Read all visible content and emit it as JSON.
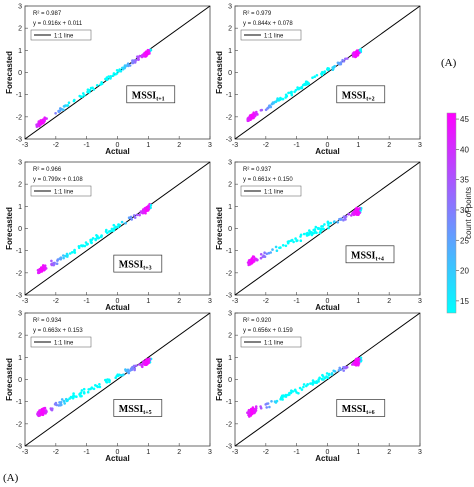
{
  "chart_data": [
    {
      "type": "scatter",
      "panel": 1,
      "xlabel": "Actual",
      "ylabel": "Forecasted",
      "xlim": [
        -3,
        3
      ],
      "ylim": [
        -3,
        3
      ],
      "ticks": [
        -3,
        -2,
        -1,
        0,
        1,
        2,
        3
      ],
      "r2": "R² = 0.987",
      "equation": "y = 0.916x + 0.011",
      "legend": "1:1 line",
      "label_main": "MSSI",
      "label_sub": "t+1",
      "slope": 0.916,
      "intercept": 0.011
    },
    {
      "type": "scatter",
      "panel": 2,
      "xlabel": "Actual",
      "ylabel": "Forecasted",
      "xlim": [
        -3,
        3
      ],
      "ylim": [
        -3,
        3
      ],
      "ticks": [
        -3,
        -2,
        -1,
        0,
        1,
        2,
        3
      ],
      "r2": "R² = 0.979",
      "equation": "y = 0.844x + 0.078",
      "legend": "1:1 line",
      "label_main": "MSSI",
      "label_sub": "t+2",
      "slope": 0.844,
      "intercept": 0.078
    },
    {
      "type": "scatter",
      "panel": 3,
      "xlabel": "Actual",
      "ylabel": "Forecasted",
      "xlim": [
        -3,
        3
      ],
      "ylim": [
        -3,
        3
      ],
      "ticks": [
        -3,
        -2,
        -1,
        0,
        1,
        2,
        3
      ],
      "r2": "R² = 0.966",
      "equation": "y = 0.799x + 0.108",
      "legend": "1:1 line",
      "label_main": "MSSI",
      "label_sub": "t+3",
      "slope": 0.799,
      "intercept": 0.108
    },
    {
      "type": "scatter",
      "panel": 4,
      "xlabel": "Actual",
      "ylabel": "Forecasted",
      "xlim": [
        -3,
        3
      ],
      "ylim": [
        -3,
        3
      ],
      "ticks": [
        -3,
        -2,
        -1,
        0,
        1,
        2,
        3
      ],
      "r2": "R² = 0.937",
      "equation": "y = 0.661x + 0.150",
      "legend": "1:1 line",
      "label_main": "MSSI",
      "label_sub": "t+4",
      "slope": 0.661,
      "intercept": 0.15
    },
    {
      "type": "scatter",
      "panel": 5,
      "xlabel": "Actual",
      "ylabel": "Forecasted",
      "xlim": [
        -3,
        3
      ],
      "ylim": [
        -3,
        3
      ],
      "ticks": [
        -3,
        -2,
        -1,
        0,
        1,
        2,
        3
      ],
      "r2": "R² = 0.934",
      "equation": "y = 0.663x + 0.153",
      "legend": "1:1 line",
      "label_main": "MSSI",
      "label_sub": "t+5",
      "slope": 0.663,
      "intercept": 0.153
    },
    {
      "type": "scatter",
      "panel": 6,
      "xlabel": "Actual",
      "ylabel": "Forecasted",
      "xlim": [
        -3,
        3
      ],
      "ylim": [
        -3,
        3
      ],
      "ticks": [
        -3,
        -2,
        -1,
        0,
        1,
        2,
        3
      ],
      "r2": "R² = 0.920",
      "equation": "y = 0.656x + 0.159",
      "legend": "1:1 line",
      "label_main": "MSSI",
      "label_sub": "t+6",
      "slope": 0.656,
      "intercept": 0.159
    }
  ],
  "colorbar": {
    "label": "count of points",
    "ticks": [
      15,
      20,
      25,
      30,
      35,
      40,
      45
    ],
    "range": [
      13,
      46
    ],
    "colors": [
      "#00ffff",
      "#ff00ff"
    ]
  },
  "panel_labels": {
    "right": "(A)",
    "bottom": "(A)"
  },
  "colors": {
    "line": "#000000",
    "frame": "#444444"
  }
}
